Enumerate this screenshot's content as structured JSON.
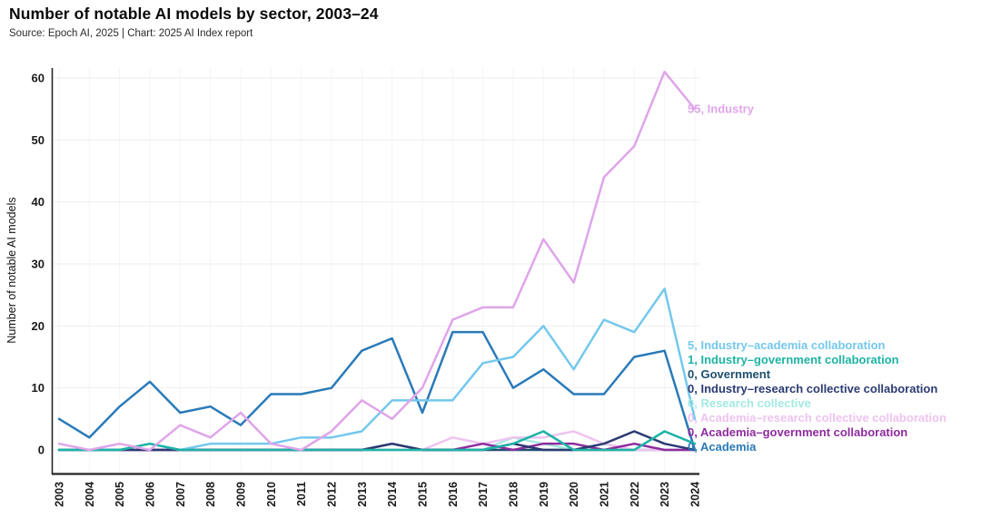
{
  "page": {
    "title": "Number of notable AI models by sector, 2003–24",
    "source": "Source: Epoch AI, 2025 | Chart: 2025 AI Index report"
  },
  "chart_data": {
    "type": "line",
    "title": "Number of notable AI models by sector, 2003–24",
    "source_note": "Source: Epoch AI, 2025 | Chart: 2025 AI Index report",
    "xlabel": "",
    "ylabel": "Number of notable AI models",
    "ylim": [
      0,
      60
    ],
    "yticks": [
      0,
      10,
      20,
      30,
      40,
      50,
      60
    ],
    "grid": true,
    "legend_position": "right-end-of-line-labels",
    "years": [
      2003,
      2004,
      2005,
      2006,
      2007,
      2008,
      2009,
      2010,
      2011,
      2012,
      2013,
      2014,
      2015,
      2016,
      2017,
      2018,
      2019,
      2020,
      2021,
      2022,
      2023,
      2024
    ],
    "series": [
      {
        "name": "Industry",
        "color": "#dfa5ea",
        "end_label": "55, Industry",
        "final_value": 55,
        "values": [
          1,
          0,
          1,
          0,
          4,
          2,
          6,
          1,
          0,
          3,
          8,
          5,
          10,
          21,
          23,
          23,
          34,
          27,
          44,
          49,
          61,
          55
        ]
      },
      {
        "name": "Industry–academia collaboration",
        "color": "#74c8ec",
        "end_label": "5, Industry–academia collaboration",
        "final_value": 5,
        "values": [
          0,
          0,
          0,
          1,
          0,
          1,
          1,
          1,
          2,
          2,
          3,
          8,
          8,
          8,
          14,
          15,
          20,
          13,
          21,
          19,
          26,
          5
        ]
      },
      {
        "name": "Industry–government collaboration",
        "color": "#1eb3a6",
        "end_label": "1, Industry–government collaboration",
        "final_value": 1,
        "values": [
          0,
          0,
          0,
          1,
          0,
          0,
          0,
          0,
          0,
          0,
          0,
          0,
          0,
          0,
          0,
          1,
          3,
          0,
          0,
          0,
          3,
          1
        ]
      },
      {
        "name": "Government",
        "color": "#1d4f6e",
        "end_label": "0, Government",
        "final_value": 0,
        "values": [
          0,
          0,
          0,
          0,
          0,
          0,
          0,
          0,
          0,
          0,
          0,
          0,
          0,
          0,
          0,
          0,
          0,
          0,
          0,
          0,
          0,
          0
        ]
      },
      {
        "name": "Industry–research collective collaboration",
        "color": "#2b3b72",
        "end_label": "0, Industry–research collective collaboration",
        "final_value": 0,
        "values": [
          0,
          0,
          0,
          0,
          0,
          0,
          0,
          0,
          0,
          0,
          0,
          1,
          0,
          0,
          0,
          1,
          0,
          0,
          1,
          3,
          1,
          0
        ]
      },
      {
        "name": "Research collective",
        "color": "#a3eae2",
        "end_label": "0, Research collective",
        "final_value": 0,
        "values": [
          0,
          0,
          0,
          0,
          0,
          0,
          0,
          0,
          0,
          0,
          0,
          0,
          0,
          0,
          0,
          2,
          1,
          0,
          1,
          0,
          0,
          0
        ]
      },
      {
        "name": "Academia–research collective collaboration",
        "color": "#eec3f0",
        "end_label": "0, Academia–research collective collaboration",
        "final_value": 0,
        "values": [
          0,
          0,
          0,
          0,
          0,
          0,
          0,
          0,
          0,
          0,
          0,
          0,
          0,
          2,
          1,
          2,
          2,
          3,
          1,
          0,
          0,
          0
        ]
      },
      {
        "name": "Academia–government collaboration",
        "color": "#8e2c9e",
        "end_label": "0, Academia–government collaboration",
        "final_value": 0,
        "values": [
          0,
          0,
          0,
          0,
          0,
          0,
          0,
          0,
          0,
          0,
          0,
          1,
          0,
          0,
          1,
          0,
          1,
          1,
          0,
          1,
          0,
          0
        ]
      },
      {
        "name": "Academia",
        "color": "#2a7ab8",
        "end_label": "0, Academia",
        "final_value": 0,
        "values": [
          5,
          2,
          7,
          11,
          6,
          7,
          4,
          9,
          9,
          10,
          16,
          18,
          6,
          19,
          19,
          10,
          13,
          9,
          9,
          15,
          16,
          0
        ]
      }
    ]
  }
}
